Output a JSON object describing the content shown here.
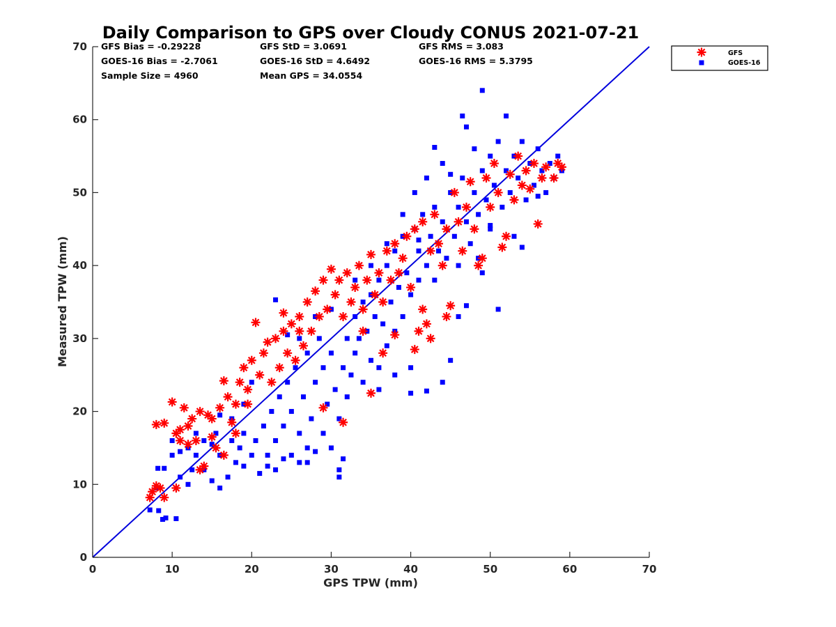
{
  "chart_data": {
    "type": "scatter",
    "title": "Daily Comparison to GPS over Cloudy CONUS 2021-07-21",
    "xlabel": "GPS TPW (mm)",
    "ylabel": "Measured TPW (mm)",
    "xlim": [
      0,
      70
    ],
    "ylim": [
      0,
      70
    ],
    "xticks": [
      0,
      10,
      20,
      30,
      40,
      50,
      60,
      70
    ],
    "yticks": [
      0,
      10,
      20,
      30,
      40,
      50,
      60,
      70
    ],
    "legend_position": "outside-top-right",
    "reference_line": {
      "name": "1:1 line",
      "x": [
        0,
        70
      ],
      "y": [
        0,
        70
      ],
      "color": "#0000dd"
    },
    "stats": [
      "GFS Bias = -0.29228",
      "GFS StD = 3.0691",
      "GFS RMS = 3.083",
      "GOES-16 Bias = -2.7061",
      "GOES-16 StD = 4.6492",
      "GOES-16 RMS = 5.3795",
      "Sample Size = 4960",
      "Mean GPS = 34.0554"
    ],
    "series": [
      {
        "name": "GOES-16",
        "marker": "square",
        "color": "#0000ff",
        "points": [
          [
            7.2,
            6.5
          ],
          [
            8.3,
            6.4
          ],
          [
            8.8,
            5.2
          ],
          [
            9.2,
            5.4
          ],
          [
            10.5,
            5.3
          ],
          [
            8.2,
            12.2
          ],
          [
            9.0,
            12.2
          ],
          [
            10.0,
            14.0
          ],
          [
            11.0,
            11.0
          ],
          [
            12.0,
            10.0
          ],
          [
            12.5,
            12.0
          ],
          [
            13.0,
            14.0
          ],
          [
            14.0,
            12.0
          ],
          [
            15.0,
            10.5
          ],
          [
            14.0,
            16.0
          ],
          [
            15.5,
            17.0
          ],
          [
            16.0,
            9.5
          ],
          [
            16.0,
            14.0
          ],
          [
            17.0,
            11.0
          ],
          [
            17.5,
            16.0
          ],
          [
            18.0,
            13.0
          ],
          [
            18.5,
            15.0
          ],
          [
            19.0,
            12.5
          ],
          [
            19.0,
            17.0
          ],
          [
            20.0,
            14.0
          ],
          [
            20.5,
            16.0
          ],
          [
            21.0,
            11.5
          ],
          [
            21.5,
            18.0
          ],
          [
            22.0,
            14.0
          ],
          [
            22.5,
            20.0
          ],
          [
            23.0,
            12.0
          ],
          [
            23.0,
            16.0
          ],
          [
            23.5,
            22.0
          ],
          [
            24.0,
            13.5
          ],
          [
            24.0,
            18.0
          ],
          [
            24.5,
            24.0
          ],
          [
            25.0,
            14.0
          ],
          [
            25.0,
            20.0
          ],
          [
            25.5,
            26.0
          ],
          [
            26.0,
            13.0
          ],
          [
            26.0,
            17.0
          ],
          [
            26.5,
            22.0
          ],
          [
            27.0,
            15.0
          ],
          [
            27.0,
            28.0
          ],
          [
            27.5,
            19.0
          ],
          [
            28.0,
            14.5
          ],
          [
            28.0,
            24.0
          ],
          [
            28.5,
            30.0
          ],
          [
            29.0,
            17.0
          ],
          [
            29.0,
            26.0
          ],
          [
            29.5,
            21.0
          ],
          [
            30.0,
            15.0
          ],
          [
            30.0,
            28.0
          ],
          [
            30.5,
            23.0
          ],
          [
            31.0,
            11.0
          ],
          [
            31.0,
            19.0
          ],
          [
            31.5,
            26.0
          ],
          [
            32.0,
            22.0
          ],
          [
            32.0,
            30.0
          ],
          [
            32.5,
            25.0
          ],
          [
            33.0,
            28.0
          ],
          [
            33.0,
            33.0
          ],
          [
            33.5,
            30.0
          ],
          [
            34.0,
            24.0
          ],
          [
            34.0,
            35.0
          ],
          [
            34.5,
            31.0
          ],
          [
            35.0,
            27.0
          ],
          [
            35.0,
            36.0
          ],
          [
            35.5,
            33.0
          ],
          [
            36.0,
            26.0
          ],
          [
            36.0,
            38.0
          ],
          [
            36.5,
            32.0
          ],
          [
            37.0,
            29.0
          ],
          [
            37.0,
            40.0
          ],
          [
            37.5,
            35.0
          ],
          [
            38.0,
            31.0
          ],
          [
            38.0,
            42.0
          ],
          [
            38.5,
            37.0
          ],
          [
            39.0,
            33.0
          ],
          [
            39.0,
            44.0
          ],
          [
            39.5,
            39.0
          ],
          [
            40.0,
            22.5
          ],
          [
            40.0,
            36.0
          ],
          [
            40.5,
            45.0
          ],
          [
            41.0,
            38.0
          ],
          [
            41.0,
            42.0
          ],
          [
            41.5,
            47.0
          ],
          [
            42.0,
            40.0
          ],
          [
            42.0,
            22.8
          ],
          [
            42.5,
            44.0
          ],
          [
            43.0,
            38.0
          ],
          [
            43.0,
            48.0
          ],
          [
            43.5,
            42.0
          ],
          [
            44.0,
            46.0
          ],
          [
            44.5,
            41.0
          ],
          [
            45.0,
            27.0
          ],
          [
            45.0,
            50.0
          ],
          [
            45.5,
            44.0
          ],
          [
            46.0,
            48.0
          ],
          [
            46.0,
            40.0
          ],
          [
            46.5,
            52.0
          ],
          [
            47.0,
            46.0
          ],
          [
            47.5,
            43.0
          ],
          [
            48.0,
            50.0
          ],
          [
            48.0,
            56.0
          ],
          [
            48.5,
            47.0
          ],
          [
            49.0,
            53.0
          ],
          [
            49.0,
            64.0
          ],
          [
            49.5,
            49.0
          ],
          [
            50.0,
            55.0
          ],
          [
            50.0,
            45.0
          ],
          [
            50.5,
            51.0
          ],
          [
            51.0,
            34.0
          ],
          [
            51.0,
            57.0
          ],
          [
            51.5,
            48.0
          ],
          [
            52.0,
            53.0
          ],
          [
            52.0,
            60.5
          ],
          [
            52.5,
            50.0
          ],
          [
            53.0,
            55.0
          ],
          [
            53.0,
            44.0
          ],
          [
            53.5,
            52.0
          ],
          [
            54.0,
            57.0
          ],
          [
            54.5,
            49.0
          ],
          [
            55.0,
            54.0
          ],
          [
            55.5,
            51.0
          ],
          [
            56.0,
            56.0
          ],
          [
            56.5,
            53.0
          ],
          [
            57.0,
            50.0
          ],
          [
            57.5,
            54.0
          ],
          [
            58.0,
            52.0
          ],
          [
            58.5,
            55.0
          ],
          [
            59.0,
            53.0
          ],
          [
            46.5,
            60.5
          ],
          [
            47.0,
            59.0
          ],
          [
            43.0,
            56.2
          ],
          [
            45.0,
            52.5
          ],
          [
            41.0,
            43.5
          ],
          [
            39.0,
            47.0
          ],
          [
            30.0,
            34.0
          ],
          [
            28.0,
            33.0
          ],
          [
            26.0,
            30.0
          ],
          [
            24.5,
            30.5
          ],
          [
            23.0,
            35.3
          ],
          [
            20.0,
            24.0
          ],
          [
            19.0,
            21.0
          ],
          [
            17.5,
            19.0
          ],
          [
            16.0,
            19.5
          ],
          [
            15.0,
            15.5
          ],
          [
            13.0,
            17.0
          ],
          [
            12.0,
            15.0
          ],
          [
            11.0,
            14.5
          ],
          [
            10.0,
            16.0
          ],
          [
            8.0,
            9.5
          ],
          [
            36.0,
            23.0
          ],
          [
            38.0,
            25.0
          ],
          [
            40.0,
            26.0
          ],
          [
            44.0,
            24.0
          ],
          [
            31.5,
            13.5
          ],
          [
            31.0,
            12.0
          ],
          [
            27.0,
            13.0
          ],
          [
            22.0,
            12.5
          ],
          [
            33.0,
            38.0
          ],
          [
            35.0,
            40.0
          ],
          [
            37.0,
            43.0
          ],
          [
            40.5,
            50.0
          ],
          [
            42.0,
            52.0
          ],
          [
            44.0,
            54.0
          ],
          [
            48.5,
            41.0
          ],
          [
            49.0,
            39.0
          ],
          [
            54.0,
            42.5
          ],
          [
            47.0,
            34.5
          ],
          [
            46.0,
            33.0
          ],
          [
            50.0,
            45.5
          ],
          [
            56.0,
            49.5
          ]
        ]
      },
      {
        "name": "GFS",
        "marker": "asterisk",
        "color": "#ff0000",
        "points": [
          [
            7.2,
            8.2
          ],
          [
            7.5,
            9.0
          ],
          [
            8.0,
            9.8
          ],
          [
            8.5,
            9.5
          ],
          [
            9.0,
            8.2
          ],
          [
            10.5,
            9.5
          ],
          [
            8.0,
            18.2
          ],
          [
            9.0,
            18.4
          ],
          [
            10.0,
            21.3
          ],
          [
            10.5,
            17.0
          ],
          [
            11.0,
            16.0
          ],
          [
            11.5,
            20.5
          ],
          [
            12.0,
            18.0
          ],
          [
            12.5,
            19.0
          ],
          [
            13.0,
            16.0
          ],
          [
            13.5,
            20.0
          ],
          [
            13.5,
            12.0
          ],
          [
            14.0,
            12.5
          ],
          [
            14.5,
            19.5
          ],
          [
            15.0,
            16.5
          ],
          [
            15.5,
            15.0
          ],
          [
            16.0,
            20.5
          ],
          [
            16.5,
            24.2
          ],
          [
            17.0,
            22.0
          ],
          [
            17.5,
            18.5
          ],
          [
            18.0,
            21.0
          ],
          [
            18.5,
            24.0
          ],
          [
            19.0,
            26.0
          ],
          [
            19.5,
            23.0
          ],
          [
            20.0,
            27.0
          ],
          [
            20.5,
            32.2
          ],
          [
            21.0,
            25.0
          ],
          [
            21.5,
            28.0
          ],
          [
            22.0,
            29.5
          ],
          [
            22.5,
            24.0
          ],
          [
            23.0,
            30.0
          ],
          [
            23.5,
            26.0
          ],
          [
            24.0,
            31.0
          ],
          [
            24.5,
            28.0
          ],
          [
            25.0,
            32.0
          ],
          [
            25.5,
            27.0
          ],
          [
            26.0,
            33.0
          ],
          [
            26.5,
            29.0
          ],
          [
            27.0,
            35.0
          ],
          [
            27.5,
            31.0
          ],
          [
            28.0,
            36.5
          ],
          [
            28.5,
            33.0
          ],
          [
            29.0,
            38.0
          ],
          [
            29.5,
            34.0
          ],
          [
            30.0,
            39.5
          ],
          [
            30.5,
            36.0
          ],
          [
            31.0,
            38.0
          ],
          [
            31.5,
            33.0
          ],
          [
            32.0,
            39.0
          ],
          [
            32.5,
            35.0
          ],
          [
            33.0,
            37.0
          ],
          [
            33.5,
            40.0
          ],
          [
            34.0,
            34.0
          ],
          [
            34.5,
            38.0
          ],
          [
            35.0,
            41.5
          ],
          [
            35.0,
            22.5
          ],
          [
            35.5,
            36.0
          ],
          [
            36.0,
            39.0
          ],
          [
            36.5,
            35.0
          ],
          [
            37.0,
            42.0
          ],
          [
            37.5,
            38.0
          ],
          [
            38.0,
            43.0
          ],
          [
            38.5,
            39.0
          ],
          [
            39.0,
            41.0
          ],
          [
            39.5,
            44.0
          ],
          [
            40.0,
            37.0
          ],
          [
            40.5,
            28.5
          ],
          [
            40.5,
            45.0
          ],
          [
            41.0,
            31.0
          ],
          [
            41.5,
            46.0
          ],
          [
            42.0,
            32.0
          ],
          [
            42.5,
            42.0
          ],
          [
            42.5,
            30.0
          ],
          [
            43.0,
            47.0
          ],
          [
            43.5,
            43.0
          ],
          [
            44.0,
            40.0
          ],
          [
            44.5,
            45.0
          ],
          [
            44.5,
            33.0
          ],
          [
            45.0,
            34.5
          ],
          [
            45.5,
            50.0
          ],
          [
            46.0,
            46.0
          ],
          [
            46.5,
            42.0
          ],
          [
            47.0,
            48.0
          ],
          [
            47.5,
            51.5
          ],
          [
            48.0,
            45.0
          ],
          [
            48.5,
            40.0
          ],
          [
            49.0,
            41.0
          ],
          [
            49.5,
            52.0
          ],
          [
            50.0,
            48.0
          ],
          [
            50.5,
            54.0
          ],
          [
            51.0,
            50.0
          ],
          [
            51.5,
            42.5
          ],
          [
            52.0,
            44.0
          ],
          [
            52.5,
            52.5
          ],
          [
            53.0,
            49.0
          ],
          [
            53.5,
            55.0
          ],
          [
            54.0,
            51.0
          ],
          [
            54.5,
            53.0
          ],
          [
            55.0,
            50.5
          ],
          [
            55.5,
            54.0
          ],
          [
            56.0,
            45.7
          ],
          [
            56.5,
            52.0
          ],
          [
            57.0,
            53.5
          ],
          [
            58.0,
            52.0
          ],
          [
            58.5,
            54.0
          ],
          [
            59.0,
            53.5
          ],
          [
            29.0,
            20.5
          ],
          [
            31.5,
            18.5
          ],
          [
            24.0,
            33.5
          ],
          [
            26.0,
            31.0
          ],
          [
            34.0,
            31.0
          ],
          [
            36.5,
            28.0
          ],
          [
            38.0,
            30.5
          ],
          [
            41.5,
            34.0
          ],
          [
            19.5,
            21.0
          ],
          [
            18.0,
            17.0
          ],
          [
            16.5,
            14.0
          ],
          [
            15.0,
            19.0
          ],
          [
            12.0,
            15.5
          ],
          [
            11.0,
            17.5
          ]
        ]
      }
    ]
  }
}
